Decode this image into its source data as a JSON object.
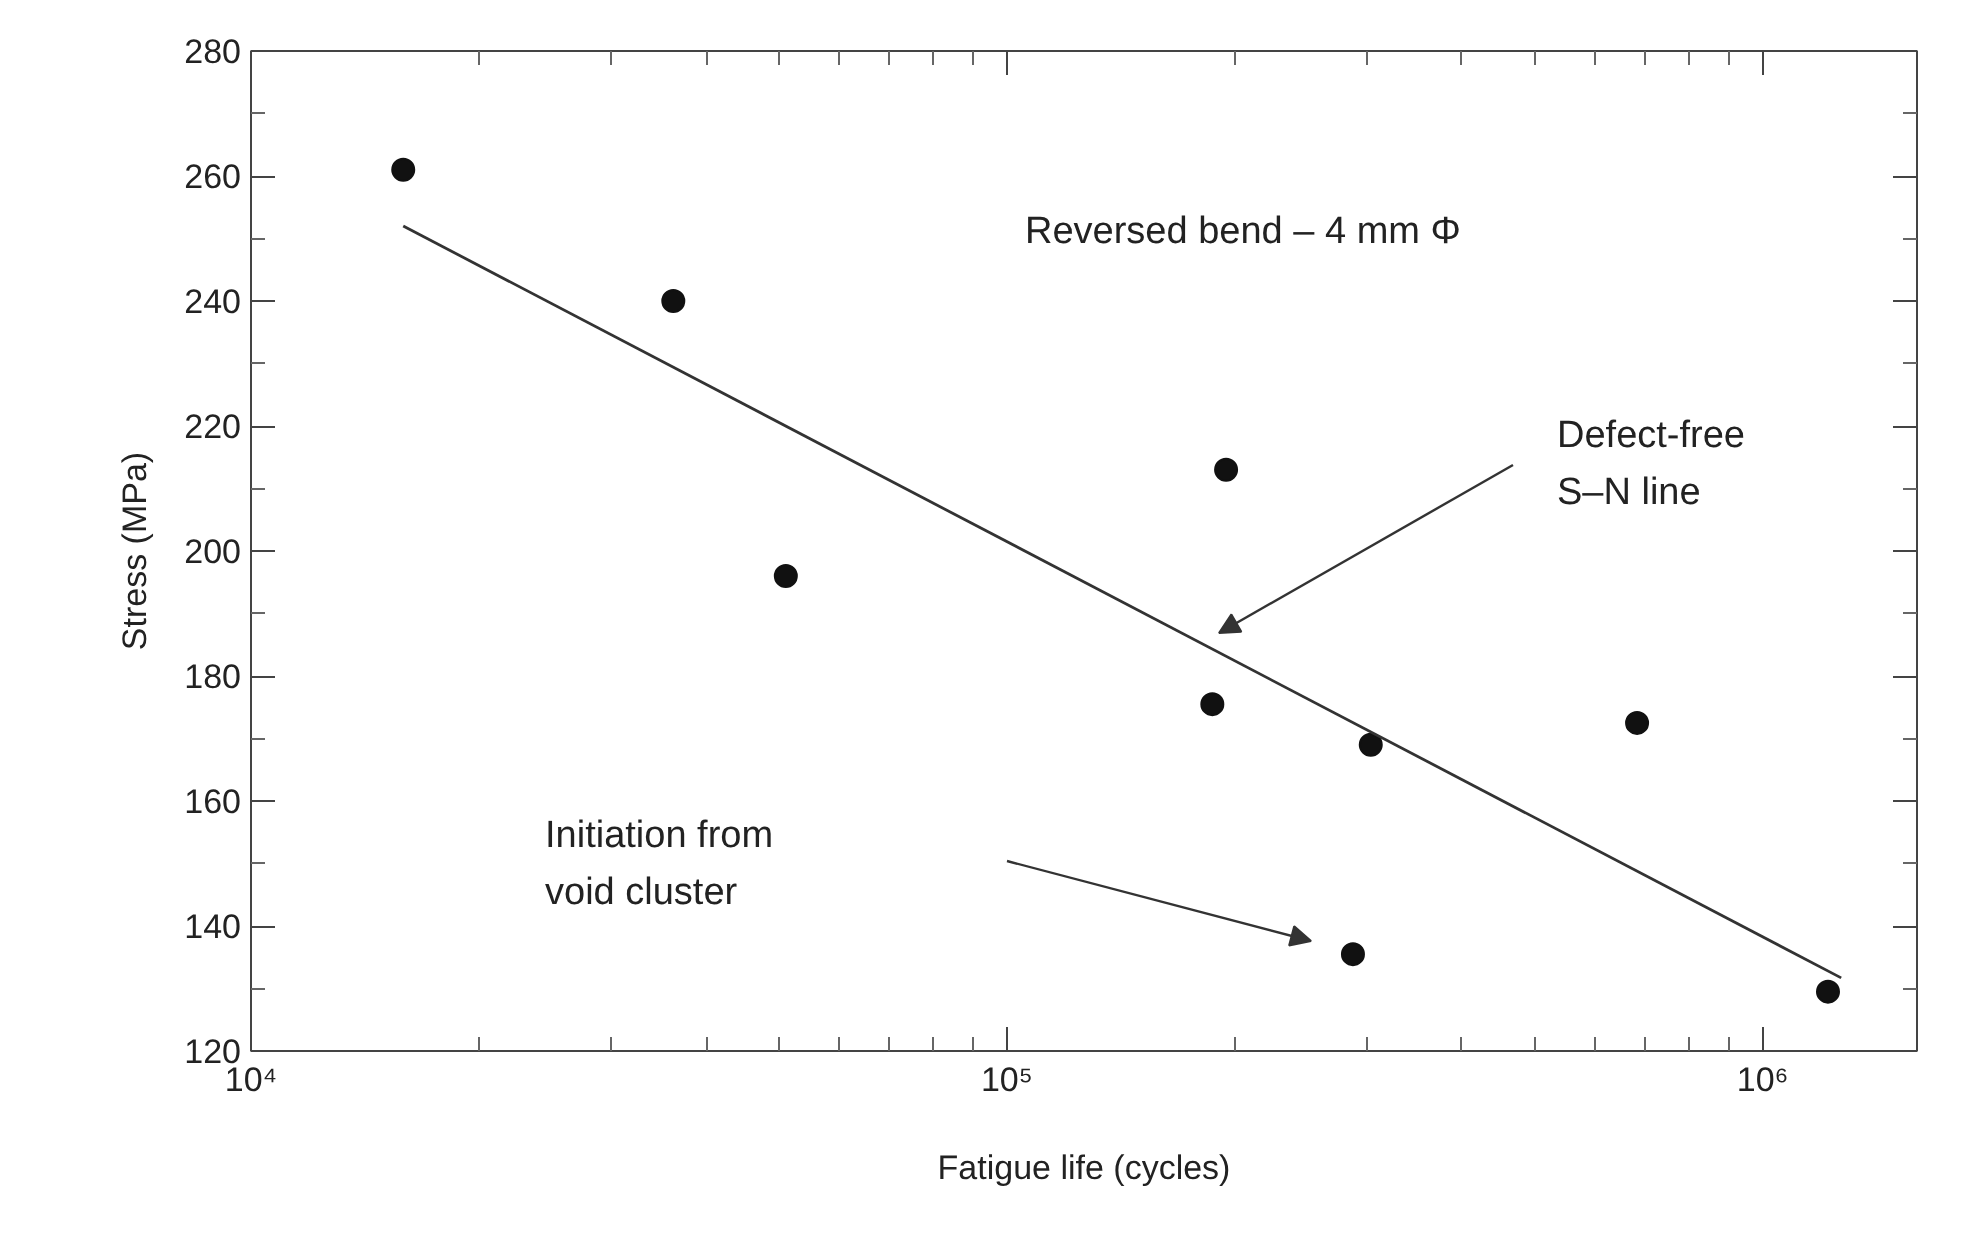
{
  "chart_data": {
    "type": "scatter",
    "xlabel": "Fatigue life (cycles)",
    "ylabel": "Stress (MPa)",
    "log": "x",
    "grid": false,
    "xlim": [
      10000,
      1600000
    ],
    "xticks": [
      {
        "value": 10000,
        "label": "10⁴"
      },
      {
        "value": 100000,
        "label": "10⁵"
      },
      {
        "value": 1000000,
        "label": "10⁶"
      }
    ],
    "ylim": [
      120,
      280
    ],
    "yticks": [
      120,
      140,
      160,
      180,
      200,
      220,
      240,
      260,
      280
    ],
    "series": [
      {
        "marker": "circle",
        "color": "#111111",
        "x": [
          15900,
          36200,
          51000,
          195000,
          187000,
          303000,
          287000,
          682000,
          1220000
        ],
        "values": [
          261,
          240,
          196,
          213,
          175.5,
          169,
          135.5,
          172.5,
          129.5
        ]
      },
      {
        "type": "line",
        "color": "#333333",
        "x": [
          15900,
          1270000
        ],
        "values": [
          252,
          131.7
        ]
      }
    ],
    "annotations": [
      "Reversed bend – 4 mm Φ",
      "Defect-free\nS–N line",
      "Initiation from\nvoid cluster"
    ]
  }
}
